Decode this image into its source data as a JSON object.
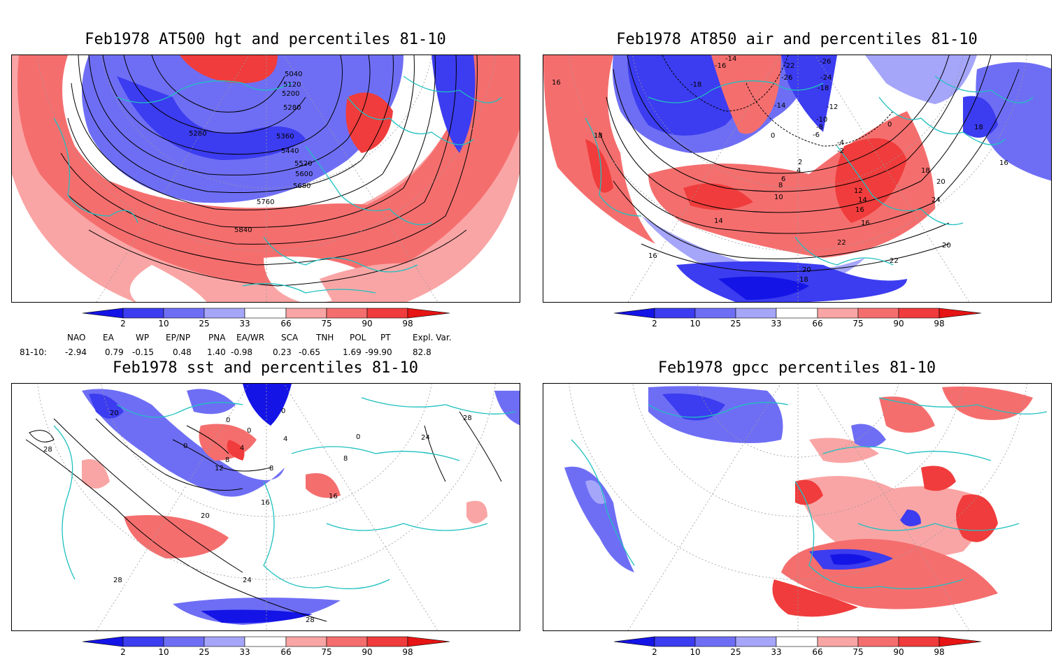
{
  "panels": [
    {
      "title": "Feb1978 AT500 hgt and percentiles 81-10",
      "contour_labels": [
        "5040",
        "5120",
        "5200",
        "5280",
        "5280",
        "5360",
        "5440",
        "5520",
        "5600",
        "5680",
        "5760",
        "5840"
      ]
    },
    {
      "title": "Feb1978 AT850 air and percentiles 81-10",
      "contour_labels": [
        "-14",
        "-16",
        "-18",
        "-22",
        "-26",
        "-26",
        "-24",
        "-18",
        "-14",
        "-12",
        "-10",
        "-8",
        "-6",
        "-4",
        "-2",
        "0",
        "0",
        "2",
        "4",
        "6",
        "8",
        "10",
        "12",
        "14",
        "16",
        "16",
        "18",
        "18",
        "20",
        "20",
        "22",
        "22",
        "24",
        "14",
        "16",
        "16",
        "16",
        "18",
        "18",
        "20"
      ]
    },
    {
      "title": "Feb1978 sst and percentiles 81-10",
      "contour_labels": [
        "20",
        "28",
        "0",
        "0",
        "0",
        "0",
        "4",
        "4",
        "8",
        "8",
        "12",
        "16",
        "16",
        "20",
        "24",
        "24",
        "28",
        "28",
        "28",
        "0",
        "8"
      ]
    },
    {
      "title": "Feb1978 gpcc percentiles 81-10",
      "contour_labels": []
    }
  ],
  "colorbar": {
    "labels": [
      "2",
      "10",
      "25",
      "33",
      "66",
      "75",
      "90",
      "98"
    ],
    "colors": [
      "#1414e6",
      "#3c3cf0",
      "#6e6ef5",
      "#a5a5fa",
      "#ffffff",
      "#faa5a5",
      "#f56e6e",
      "#f03c3c",
      "#e61414"
    ]
  },
  "indices": {
    "headers": [
      "NAO",
      "EA",
      "WP",
      "EP/NP",
      "PNA",
      "EA/WR",
      "SCA",
      "TNH",
      "POL",
      "PT",
      "Expl. Var."
    ],
    "row_label": "81-10:",
    "values": [
      "-2.94",
      "0.79",
      "-0.15",
      "0.48",
      "1.40",
      "-0.98",
      "0.23",
      "-0.65",
      "1.69",
      "-99.90",
      "82.8"
    ]
  },
  "colors": {
    "coast": "#20c0c0",
    "contour": "#000000",
    "grid": "#999999"
  }
}
